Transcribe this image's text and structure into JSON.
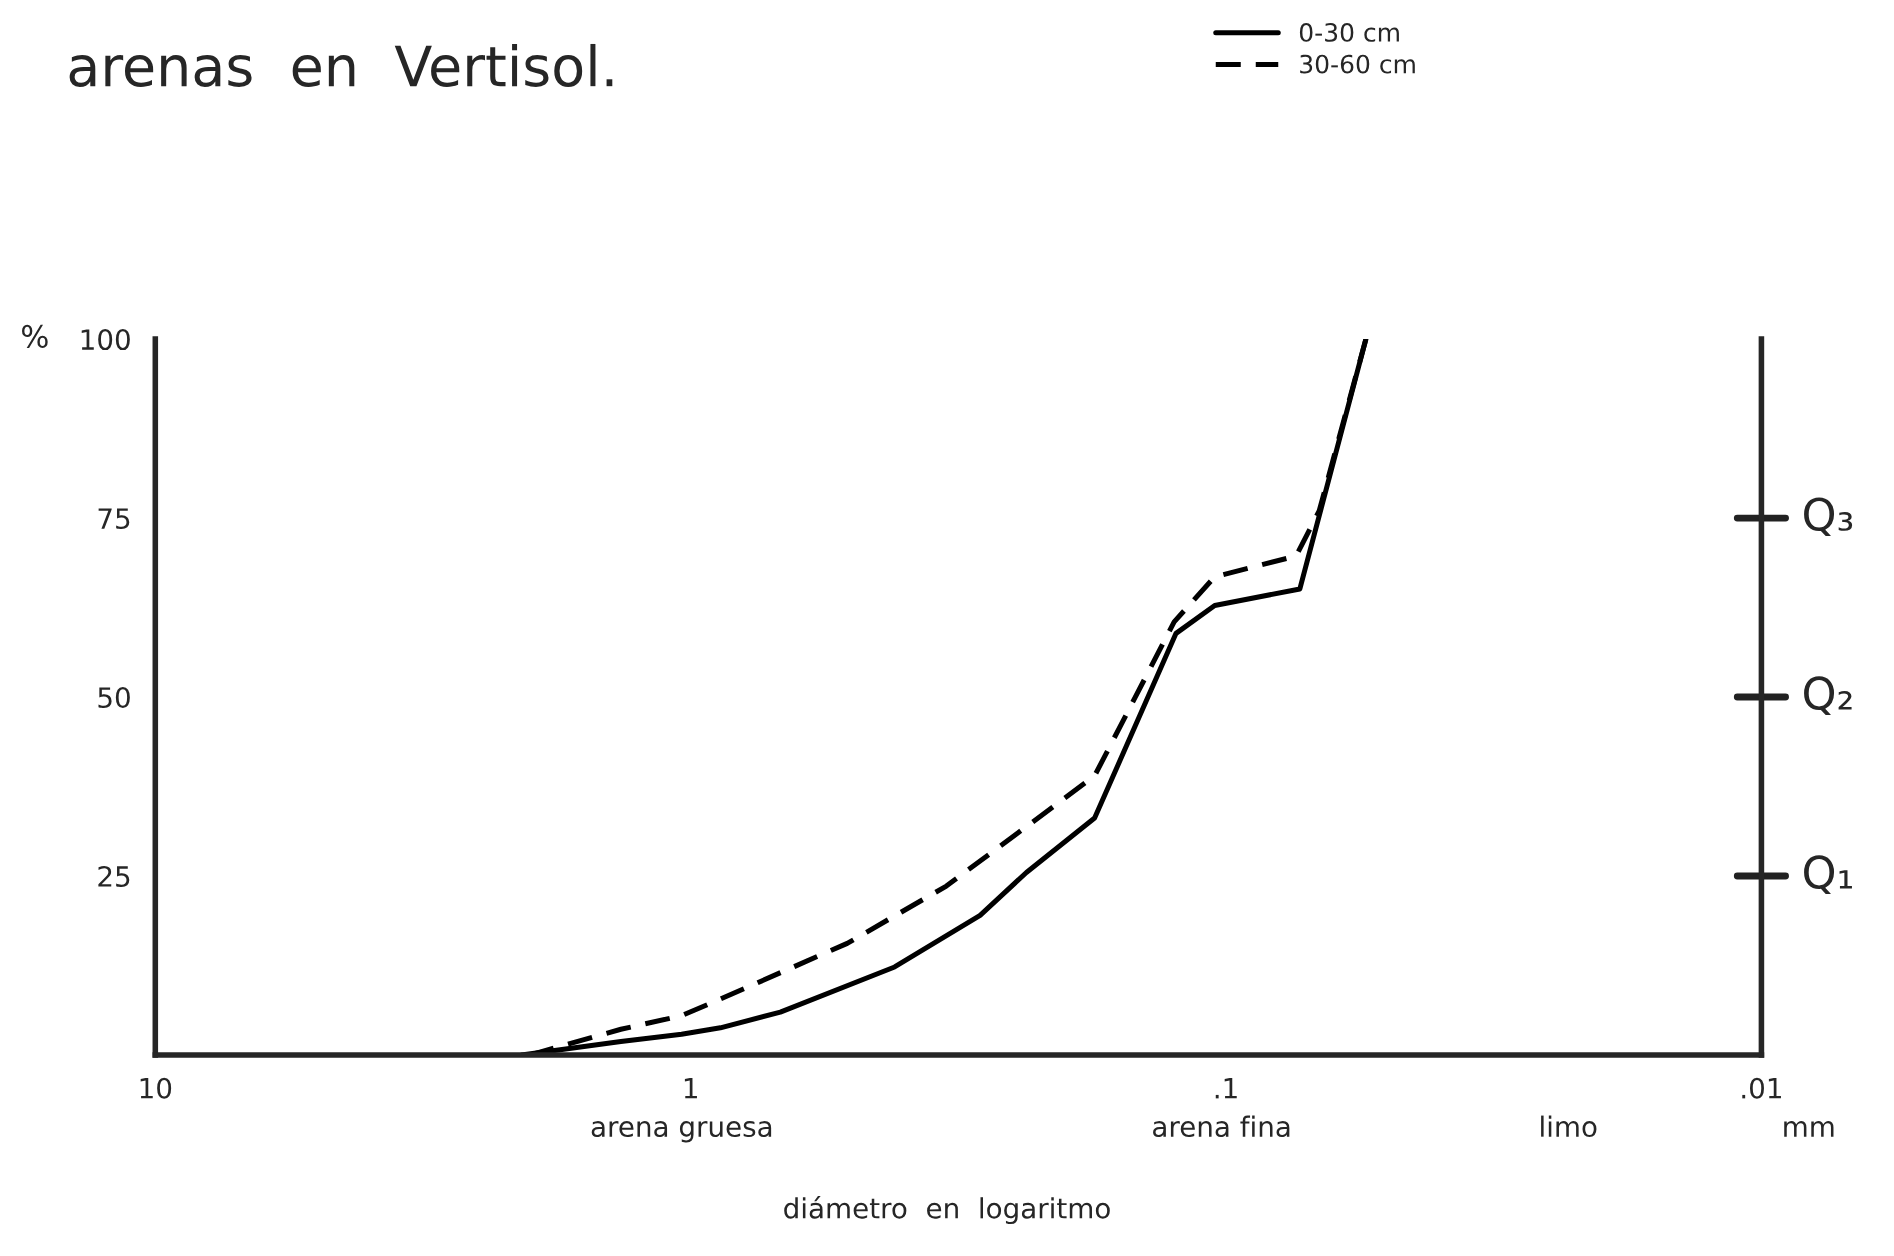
{
  "chart_data": {
    "type": "line",
    "title": "arenas  en  Vertisol.",
    "ylabel": "%",
    "xlabel": "diámetro  en  logaritmo",
    "annotations": [
      "arena gruesa",
      "arena fina",
      "limo",
      "mm"
    ],
    "ref_lines": [
      {
        "axis": "y",
        "value": 25,
        "label": "Q₁"
      },
      {
        "axis": "y",
        "value": 50,
        "label": "Q₂"
      },
      {
        "axis": "y",
        "value": 75,
        "label": "Q₃"
      }
    ],
    "log": "x",
    "xlim": [
      10,
      0.01
    ],
    "xticks": [
      {
        "value": 10,
        "label": "10"
      },
      {
        "value": 1,
        "label": "1"
      },
      {
        "value": 0.1,
        "label": ".1"
      },
      {
        "value": 0.01,
        "label": ".01"
      }
    ],
    "ylim": [
      0,
      100
    ],
    "yticks": [
      25,
      50,
      75,
      100
    ],
    "legend": "top right",
    "grid": false,
    "marker": "none",
    "series": [
      {
        "name": "0-30 cm",
        "color": "#000000",
        "line_style": "solid",
        "x": [
          2.07,
          1.35,
          1.04,
          0.88,
          0.68,
          0.416,
          0.288,
          0.236,
          0.176,
          0.124,
          0.105,
          0.0728,
          0.0548
        ],
        "values": [
          0,
          1.9,
          2.9,
          3.8,
          6.0,
          12.3,
          19.5,
          25.5,
          33.1,
          58.9,
          62.8,
          65.1,
          100
        ]
      },
      {
        "name": "30-60 cm",
        "color": "#000000",
        "line_style": "dashed",
        "x": [
          2.0,
          1.35,
          1.04,
          0.9,
          0.51,
          0.333,
          0.236,
          0.176,
          0.125,
          0.105,
          0.074,
          0.067,
          0.0548
        ],
        "values": [
          0,
          3.6,
          5.5,
          7.5,
          15.6,
          23.6,
          31.9,
          39.0,
          60.5,
          66.8,
          69.7,
          76,
          100
        ]
      }
    ]
  }
}
